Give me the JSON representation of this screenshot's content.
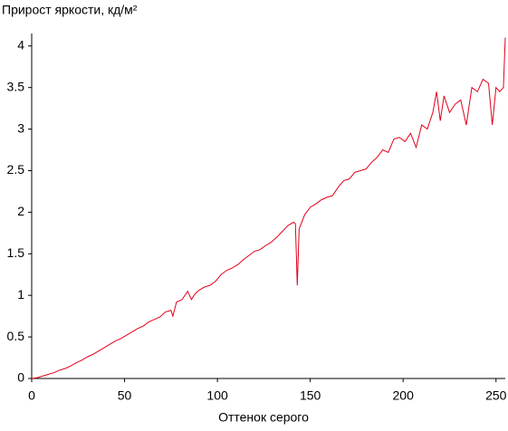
{
  "chart_data": {
    "type": "line",
    "title": "Прирост яркости, кд/м²",
    "x_label": "Оттенок серого",
    "x": [
      0,
      3,
      6,
      9,
      12,
      15,
      18,
      21,
      24,
      27,
      30,
      33,
      36,
      39,
      42,
      45,
      48,
      51,
      54,
      57,
      60,
      63,
      66,
      69,
      72,
      75,
      76,
      78,
      81,
      84,
      86,
      88,
      90,
      93,
      96,
      99,
      102,
      105,
      108,
      111,
      114,
      117,
      120,
      123,
      126,
      129,
      132,
      135,
      138,
      141,
      142,
      143,
      144,
      147,
      150,
      153,
      156,
      159,
      162,
      165,
      168,
      171,
      174,
      177,
      180,
      183,
      186,
      189,
      192,
      195,
      198,
      201,
      204,
      207,
      210,
      213,
      216,
      218,
      220,
      222,
      225,
      228,
      231,
      234,
      237,
      240,
      243,
      246,
      248,
      250,
      252,
      254,
      255
    ],
    "series": [
      {
        "name": "Прирост яркости",
        "color": "#e0001a",
        "values": [
          0,
          0.01,
          0.03,
          0.05,
          0.07,
          0.1,
          0.12,
          0.15,
          0.19,
          0.22,
          0.26,
          0.29,
          0.33,
          0.37,
          0.41,
          0.45,
          0.48,
          0.52,
          0.56,
          0.6,
          0.63,
          0.68,
          0.71,
          0.74,
          0.8,
          0.82,
          0.75,
          0.92,
          0.95,
          1.05,
          0.95,
          1.02,
          1.06,
          1.1,
          1.12,
          1.17,
          1.25,
          1.3,
          1.33,
          1.37,
          1.43,
          1.48,
          1.53,
          1.55,
          1.6,
          1.64,
          1.7,
          1.77,
          1.84,
          1.88,
          1.86,
          1.12,
          1.8,
          1.97,
          2.06,
          2.1,
          2.15,
          2.18,
          2.2,
          2.3,
          2.38,
          2.4,
          2.48,
          2.5,
          2.52,
          2.6,
          2.66,
          2.75,
          2.72,
          2.88,
          2.9,
          2.85,
          2.95,
          2.78,
          3.05,
          3.0,
          3.2,
          3.45,
          3.1,
          3.4,
          3.2,
          3.3,
          3.35,
          3.05,
          3.5,
          3.45,
          3.6,
          3.55,
          3.05,
          3.5,
          3.45,
          3.5,
          4.1
        ]
      }
    ],
    "xlim": [
      0,
      255
    ],
    "xticks": [
      0,
      50,
      100,
      150,
      200,
      250
    ],
    "ylim": [
      0,
      4.15
    ],
    "yticks": [
      0,
      0.5,
      1,
      1.5,
      2,
      2.5,
      3,
      3.5,
      4
    ],
    "grid": false
  }
}
